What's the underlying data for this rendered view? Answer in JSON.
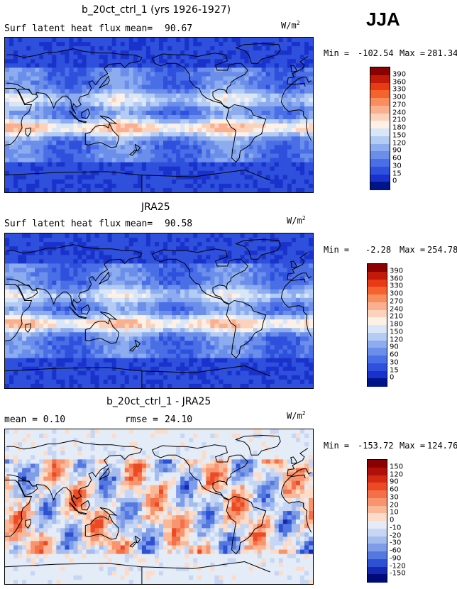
{
  "season": "JJA",
  "panels": [
    {
      "title": "b_20ct_ctrl_1 (yrs 1926-1927)",
      "left_label": "Surf latent heat flux",
      "stat_label": "mean=",
      "stat_value": "90.67",
      "units_base": "W/m",
      "units_exp": "2",
      "min_label": "Min =",
      "min_value": "-102.54",
      "max_label": "Max =",
      "max_value": "281.34",
      "colorbar_labels": [
        "390",
        "360",
        "330",
        "300",
        "270",
        "240",
        "210",
        "180",
        "150",
        "120",
        "90",
        "60",
        "30",
        "15",
        "0"
      ],
      "colorbar_colors": [
        "#8b0000",
        "#c21a0a",
        "#e83a14",
        "#f4622e",
        "#f88d5e",
        "#fab08e",
        "#fcd2bc",
        "#fdf0e6",
        "#d8e6f8",
        "#b4ccf4",
        "#8cacef",
        "#6a8eea",
        "#4a6ee6",
        "#2e50dd",
        "#1a32cc",
        "#00148a"
      ],
      "map_style": "mean"
    },
    {
      "title": "JRA25",
      "left_label": "Surf latent heat flux",
      "stat_label": "mean=",
      "stat_value": "90.58",
      "units_base": "W/m",
      "units_exp": "2",
      "min_label": "Min =",
      "min_value": "-2.28",
      "max_label": "Max =",
      "max_value": "254.78",
      "colorbar_labels": [
        "390",
        "360",
        "330",
        "300",
        "270",
        "240",
        "210",
        "180",
        "150",
        "120",
        "90",
        "60",
        "30",
        "15",
        "0"
      ],
      "colorbar_colors": [
        "#8b0000",
        "#c21a0a",
        "#e83a14",
        "#f4622e",
        "#f88d5e",
        "#fab08e",
        "#fcd2bc",
        "#fdf0e6",
        "#d8e6f8",
        "#b4ccf4",
        "#8cacef",
        "#6a8eea",
        "#4a6ee6",
        "#2e50dd",
        "#1a32cc",
        "#00148a"
      ],
      "map_style": "mean"
    },
    {
      "title": "b_20ct_ctrl_1 - JRA25",
      "left_label": "mean =   0.10",
      "stat_label": "rmse =",
      "stat_value": "24.10",
      "units_base": "W/m",
      "units_exp": "2",
      "min_label": "Min =",
      "min_value": "-153.72",
      "max_label": "Max =",
      "max_value": "124.76",
      "colorbar_labels": [
        "150",
        "120",
        "90",
        "60",
        "30",
        "20",
        "10",
        "0",
        "-10",
        "-20",
        "-30",
        "-60",
        "-90",
        "-120",
        "-150"
      ],
      "colorbar_colors": [
        "#8b0000",
        "#b0100a",
        "#d42a14",
        "#ec4a24",
        "#f47048",
        "#f8946e",
        "#fbb898",
        "#fcdcc8",
        "#e4ecf8",
        "#c6d6f4",
        "#a4bcee",
        "#7e9ce8",
        "#5478e0",
        "#2e50d2",
        "#1428b0",
        "#000a78"
      ],
      "map_style": "diff"
    }
  ]
}
